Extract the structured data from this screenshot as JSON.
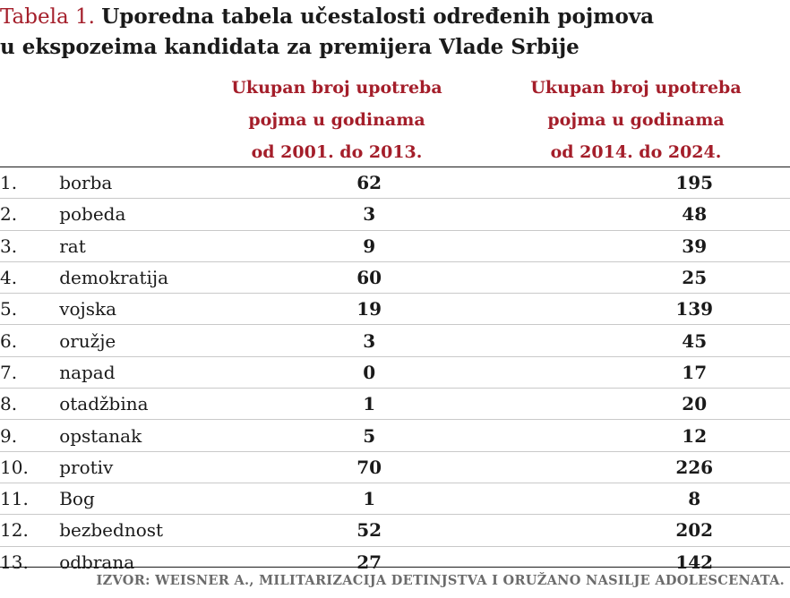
{
  "title": {
    "label": "Tabela 1.",
    "line1": "Uporedna tabela učestalosti određenih pojmova",
    "line2": "u ekspozeima kandidata za premijera Vlade Srbije"
  },
  "columns": {
    "col1": [
      "Ukupan broj upotreba",
      "pojma u godinama",
      "od 2001. do 2013."
    ],
    "col2": [
      "Ukupan broj upotreba",
      "pojma u godinama",
      "od 2014. do 2024."
    ]
  },
  "rows": [
    {
      "num": "1.",
      "term": "borba",
      "v1": "62",
      "v2": "195"
    },
    {
      "num": "2.",
      "term": "pobeda",
      "v1": "3",
      "v2": "48"
    },
    {
      "num": "3.",
      "term": "rat",
      "v1": "9",
      "v2": "39"
    },
    {
      "num": "4.",
      "term": "demokratija",
      "v1": "60",
      "v2": "25"
    },
    {
      "num": "5.",
      "term": "vojska",
      "v1": "19",
      "v2": "139"
    },
    {
      "num": "6.",
      "term": "oružje",
      "v1": "3",
      "v2": "45"
    },
    {
      "num": "7.",
      "term": "napad",
      "v1": "0",
      "v2": "17"
    },
    {
      "num": "8.",
      "term": "otadžbina",
      "v1": "1",
      "v2": "20"
    },
    {
      "num": "9.",
      "term": "opstanak",
      "v1": "5",
      "v2": "12"
    },
    {
      "num": "10.",
      "term": "protiv",
      "v1": "70",
      "v2": "226"
    },
    {
      "num": "11.",
      "term": "Bog",
      "v1": "1",
      "v2": "8"
    },
    {
      "num": "12.",
      "term": "bezbednost",
      "v1": "52",
      "v2": "202"
    },
    {
      "num": "13.",
      "term": "odbrana",
      "v1": "27",
      "v2": "142"
    }
  ],
  "source": "IZVOR: WEISNER A., MILITARIZACIJA DETINJSTVA I ORUŽANO NASILJE ADOLESCENATA.",
  "colors": {
    "accent": "#a41e2a",
    "text": "#1a1a1a",
    "source": "#6b6b6b"
  }
}
